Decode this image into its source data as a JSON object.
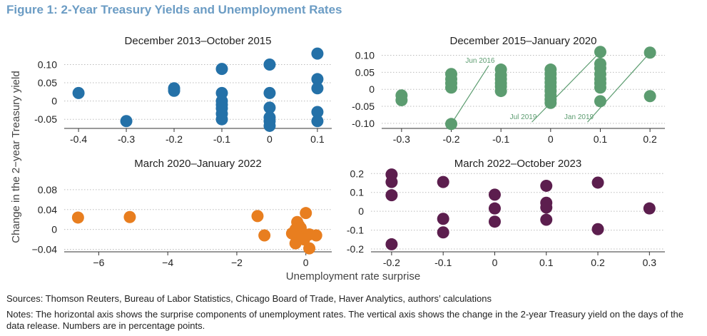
{
  "figure_title": "Figure 1: 2-Year Treasury Yields and Unemployment Rates",
  "shared_ylabel": "Change in the 2−year Treasury yield",
  "shared_xlabel": "Unemployment rate surprise",
  "sources": "Sources: Thomson Reuters, Bureau of Labor Statistics, Chicago Board of Trade, Haver Analytics, authors’ calculations",
  "notes": "Notes: The horizontal axis shows the surprise components of unemployment rates. The vertical axis shows the change in the 2-year Treasury yield on the days of the data release. Numbers are in percentage points.",
  "chart_data": [
    {
      "type": "scatter",
      "title": "December 2013–October 2015",
      "color": "#2471a8",
      "xlim": [
        -0.43,
        0.13
      ],
      "ylim": [
        -0.075,
        0.14
      ],
      "xticks": [
        -0.4,
        -0.3,
        -0.2,
        -0.1,
        0,
        0.1
      ],
      "xtick_labels": [
        "-0.4",
        "-0.3",
        "-0.2",
        "-0.1",
        "0",
        "0.1"
      ],
      "yticks": [
        -0.05,
        0,
        0.05,
        0.1
      ],
      "ytick_labels": [
        "-0.05",
        "0",
        "0.05",
        "0.10"
      ],
      "grid": "horizontal dotted",
      "points": [
        [
          -0.4,
          0.022
        ],
        [
          -0.3,
          -0.055
        ],
        [
          -0.2,
          0.035
        ],
        [
          -0.2,
          0.028
        ],
        [
          -0.1,
          0.088
        ],
        [
          -0.1,
          0.022
        ],
        [
          -0.1,
          0.0
        ],
        [
          -0.1,
          -0.01
        ],
        [
          -0.1,
          -0.02
        ],
        [
          -0.1,
          -0.035
        ],
        [
          -0.1,
          -0.05
        ],
        [
          0,
          0.1
        ],
        [
          0,
          0.022
        ],
        [
          0,
          -0.018
        ],
        [
          0,
          -0.045
        ],
        [
          0,
          -0.055
        ],
        [
          0,
          -0.068
        ],
        [
          0.1,
          0.13
        ],
        [
          0.1,
          0.06
        ],
        [
          0.1,
          0.035
        ],
        [
          0.1,
          -0.03
        ],
        [
          0.1,
          -0.055
        ]
      ],
      "annotations": []
    },
    {
      "type": "scatter",
      "title": "December 2015–January 2020",
      "color": "#5c9c70",
      "xlim": [
        -0.34,
        0.23
      ],
      "ylim": [
        -0.115,
        0.12
      ],
      "xticks": [
        -0.3,
        -0.2,
        -0.1,
        0,
        0.1,
        0.2
      ],
      "xtick_labels": [
        "-0.3",
        "-0.2",
        "-0.1",
        "0",
        "0.1",
        "0.2"
      ],
      "yticks": [
        -0.1,
        -0.05,
        0,
        0.05,
        0.1
      ],
      "ytick_labels": [
        "-0.10",
        "-0.05",
        "0",
        "0.05",
        "0.10"
      ],
      "grid": "horizontal dotted",
      "points": [
        [
          -0.3,
          -0.018
        ],
        [
          -0.3,
          -0.032
        ],
        [
          -0.2,
          0.045
        ],
        [
          -0.2,
          0.03
        ],
        [
          -0.2,
          0.018
        ],
        [
          -0.2,
          0.005
        ],
        [
          -0.2,
          -0.102
        ],
        [
          -0.1,
          0.058
        ],
        [
          -0.1,
          0.042
        ],
        [
          -0.1,
          0.03
        ],
        [
          -0.1,
          0.018
        ],
        [
          -0.1,
          0.008
        ],
        [
          -0.1,
          -0.005
        ],
        [
          0,
          0.058
        ],
        [
          0,
          0.045
        ],
        [
          0,
          0.032
        ],
        [
          0,
          0.02
        ],
        [
          0,
          0.008
        ],
        [
          0,
          -0.005
        ],
        [
          0,
          -0.018
        ],
        [
          0,
          -0.03
        ],
        [
          0,
          -0.04
        ],
        [
          0.1,
          0.11
        ],
        [
          0.1,
          0.075
        ],
        [
          0.1,
          0.062
        ],
        [
          0.1,
          0.045
        ],
        [
          0.1,
          0.03
        ],
        [
          0.1,
          0.018
        ],
        [
          0.1,
          0.005
        ],
        [
          0.1,
          -0.035
        ],
        [
          0.2,
          0.108
        ],
        [
          0.2,
          -0.02
        ]
      ],
      "annotations": [
        {
          "text": "Jun 2016",
          "point": [
            -0.2,
            -0.102
          ],
          "label_at": [
            -0.142,
            0.078
          ]
        },
        {
          "text": "Jul 2019",
          "point": [
            0.1,
            0.11
          ],
          "label_at": [
            -0.055,
            -0.088
          ]
        },
        {
          "text": "Jan 2019",
          "point": [
            0.2,
            0.108
          ],
          "label_at": [
            0.057,
            -0.088
          ]
        }
      ]
    },
    {
      "type": "scatter",
      "title": "March 2020–January 2022",
      "color": "#e87e1f",
      "xlim": [
        -7.0,
        0.75
      ],
      "ylim": [
        -0.045,
        0.1
      ],
      "xticks": [
        -6,
        -4,
        -2,
        0
      ],
      "xtick_labels": [
        "−6",
        "−4",
        "−2",
        "0"
      ],
      "yticks": [
        -0.04,
        0,
        0.04,
        0.08
      ],
      "ytick_labels": [
        "−0.04",
        "0",
        "0.04",
        "0.08"
      ],
      "grid": "horizontal dotted",
      "points": [
        [
          -6.6,
          0.024
        ],
        [
          -5.1,
          0.025
        ],
        [
          -1.4,
          0.027
        ],
        [
          -1.2,
          -0.012
        ],
        [
          0.0,
          0.033
        ],
        [
          -0.25,
          0.015
        ],
        [
          -0.2,
          0.008
        ],
        [
          -0.3,
          0.0
        ],
        [
          -0.15,
          0.003
        ],
        [
          -0.4,
          -0.008
        ],
        [
          -0.1,
          -0.008
        ],
        [
          -0.2,
          -0.015
        ],
        [
          0.0,
          -0.012
        ],
        [
          0.1,
          -0.01
        ],
        [
          -0.05,
          -0.02
        ],
        [
          -0.3,
          -0.028
        ],
        [
          0.3,
          -0.012
        ],
        [
          0.1,
          -0.038
        ]
      ],
      "annotations": []
    },
    {
      "type": "scatter",
      "title": "March 2022–October 2023",
      "color": "#5c1e4e",
      "xlim": [
        -0.24,
        0.33
      ],
      "ylim": [
        -0.215,
        0.235
      ],
      "xticks": [
        -0.2,
        -0.1,
        0,
        0.1,
        0.2,
        0.3
      ],
      "xtick_labels": [
        "-0.2",
        "-0.1",
        "0",
        "0.1",
        "0.2",
        "0.3"
      ],
      "yticks": [
        -0.2,
        -0.1,
        0,
        0.1,
        0.2
      ],
      "ytick_labels": [
        "-0.2",
        "-0.1",
        "0",
        "0.1",
        "0.2"
      ],
      "grid": "horizontal dotted",
      "points": [
        [
          -0.2,
          0.195
        ],
        [
          -0.2,
          0.155
        ],
        [
          -0.2,
          0.085
        ],
        [
          -0.2,
          -0.175
        ],
        [
          -0.1,
          0.155
        ],
        [
          -0.1,
          -0.04
        ],
        [
          -0.1,
          -0.112
        ],
        [
          0,
          0.088
        ],
        [
          0,
          0.015
        ],
        [
          0,
          -0.055
        ],
        [
          0.1,
          0.135
        ],
        [
          0.1,
          0.045
        ],
        [
          0.1,
          0.02
        ],
        [
          0.1,
          -0.045
        ],
        [
          0.2,
          0.152
        ],
        [
          0.2,
          -0.095
        ],
        [
          0.3,
          0.015
        ]
      ],
      "annotations": []
    }
  ]
}
